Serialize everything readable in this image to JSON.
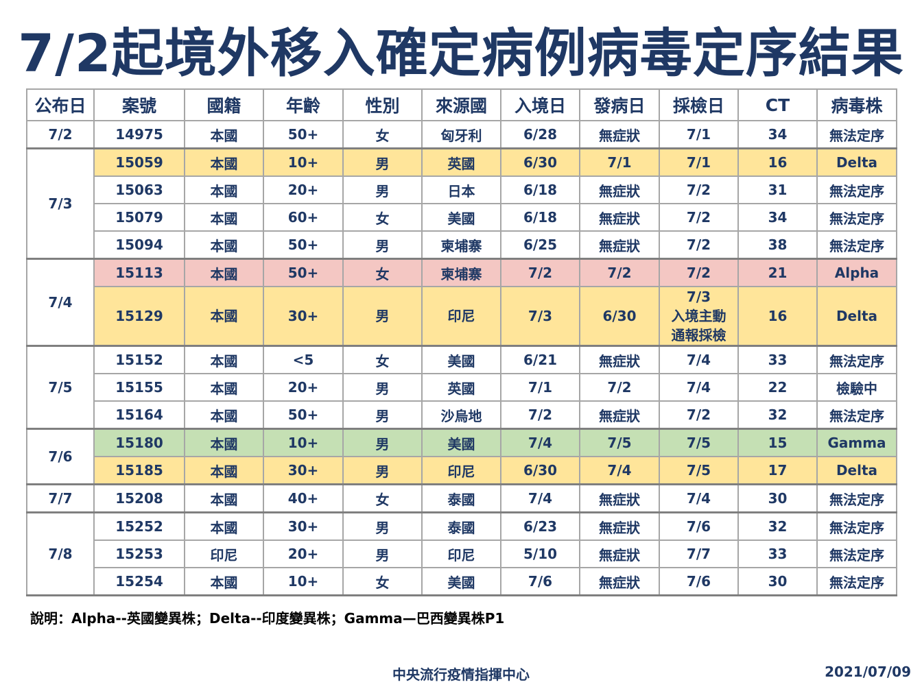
{
  "title": "7/2起境外移入確定病例病毒定序結果",
  "columns": [
    "公布日",
    "案號",
    "國籍",
    "年齡",
    "性別",
    "來源國",
    "入境日",
    "發病日",
    "採檢日",
    "CT",
    "病毒株"
  ],
  "groups": [
    {
      "date": "7/2",
      "rows": [
        {
          "case": "14975",
          "nat": "本國",
          "age": "50+",
          "sex": "女",
          "src": "匈牙利",
          "entry": "6/28",
          "onset": "無症狀",
          "sample": "7/1",
          "ct": "34",
          "strain": "無法定序",
          "color": "white"
        }
      ]
    },
    {
      "date": "7/3",
      "rows": [
        {
          "case": "15059",
          "nat": "本國",
          "age": "10+",
          "sex": "男",
          "src": "英國",
          "entry": "6/30",
          "onset": "7/1",
          "sample": "7/1",
          "ct": "16",
          "strain": "Delta",
          "color": "yellow"
        },
        {
          "case": "15063",
          "nat": "本國",
          "age": "20+",
          "sex": "男",
          "src": "日本",
          "entry": "6/18",
          "onset": "無症狀",
          "sample": "7/2",
          "ct": "31",
          "strain": "無法定序",
          "color": "white"
        },
        {
          "case": "15079",
          "nat": "本國",
          "age": "60+",
          "sex": "女",
          "src": "美國",
          "entry": "6/18",
          "onset": "無症狀",
          "sample": "7/2",
          "ct": "34",
          "strain": "無法定序",
          "color": "white"
        },
        {
          "case": "15094",
          "nat": "本國",
          "age": "50+",
          "sex": "男",
          "src": "柬埔寨",
          "entry": "6/25",
          "onset": "無症狀",
          "sample": "7/2",
          "ct": "38",
          "strain": "無法定序",
          "color": "white"
        }
      ]
    },
    {
      "date": "7/4",
      "rows": [
        {
          "case": "15113",
          "nat": "本國",
          "age": "50+",
          "sex": "女",
          "src": "柬埔寨",
          "entry": "7/2",
          "onset": "7/2",
          "sample": "7/2",
          "ct": "21",
          "strain": "Alpha",
          "color": "pink"
        },
        {
          "case": "15129",
          "nat": "本國",
          "age": "30+",
          "sex": "男",
          "src": "印尼",
          "entry": "7/3",
          "onset": "6/30",
          "sample": "7/3\n入境主動\n通報採檢",
          "ct": "16",
          "strain": "Delta",
          "color": "yellow",
          "tall": true
        }
      ]
    },
    {
      "date": "7/5",
      "rows": [
        {
          "case": "15152",
          "nat": "本國",
          "age": "<5",
          "sex": "女",
          "src": "美國",
          "entry": "6/21",
          "onset": "無症狀",
          "sample": "7/4",
          "ct": "33",
          "strain": "無法定序",
          "color": "white"
        },
        {
          "case": "15155",
          "nat": "本國",
          "age": "20+",
          "sex": "男",
          "src": "英國",
          "entry": "7/1",
          "onset": "7/2",
          "sample": "7/4",
          "ct": "22",
          "strain": "檢驗中",
          "color": "white"
        },
        {
          "case": "15164",
          "nat": "本國",
          "age": "50+",
          "sex": "男",
          "src": "沙烏地",
          "entry": "7/2",
          "onset": "無症狀",
          "sample": "7/2",
          "ct": "32",
          "strain": "無法定序",
          "color": "white"
        }
      ]
    },
    {
      "date": "7/6",
      "rows": [
        {
          "case": "15180",
          "nat": "本國",
          "age": "10+",
          "sex": "男",
          "src": "美國",
          "entry": "7/4",
          "onset": "7/5",
          "sample": "7/5",
          "ct": "15",
          "strain": "Gamma",
          "color": "green"
        },
        {
          "case": "15185",
          "nat": "本國",
          "age": "30+",
          "sex": "男",
          "src": "印尼",
          "entry": "6/30",
          "onset": "7/4",
          "sample": "7/5",
          "ct": "17",
          "strain": "Delta",
          "color": "yellow"
        }
      ]
    },
    {
      "date": "7/7",
      "rows": [
        {
          "case": "15208",
          "nat": "本國",
          "age": "40+",
          "sex": "女",
          "src": "泰國",
          "entry": "7/4",
          "onset": "無症狀",
          "sample": "7/4",
          "ct": "30",
          "strain": "無法定序",
          "color": "white"
        }
      ]
    },
    {
      "date": "7/8",
      "rows": [
        {
          "case": "15252",
          "nat": "本國",
          "age": "30+",
          "sex": "男",
          "src": "泰國",
          "entry": "6/23",
          "onset": "無症狀",
          "sample": "7/6",
          "ct": "32",
          "strain": "無法定序",
          "color": "white"
        },
        {
          "case": "15253",
          "nat": "印尼",
          "age": "20+",
          "sex": "男",
          "src": "印尼",
          "entry": "5/10",
          "onset": "無症狀",
          "sample": "7/7",
          "ct": "33",
          "strain": "無法定序",
          "color": "white"
        },
        {
          "case": "15254",
          "nat": "本國",
          "age": "10+",
          "sex": "女",
          "src": "美國",
          "entry": "7/6",
          "onset": "無症狀",
          "sample": "7/6",
          "ct": "30",
          "strain": "無法定序",
          "color": "white"
        }
      ]
    }
  ],
  "note": "說明：Alpha--英國變異株；Delta--印度變異株；Gamma—巴西變異株P1",
  "footer": {
    "org": "中央流行疫情指揮中心",
    "date": "2021/07/09"
  }
}
